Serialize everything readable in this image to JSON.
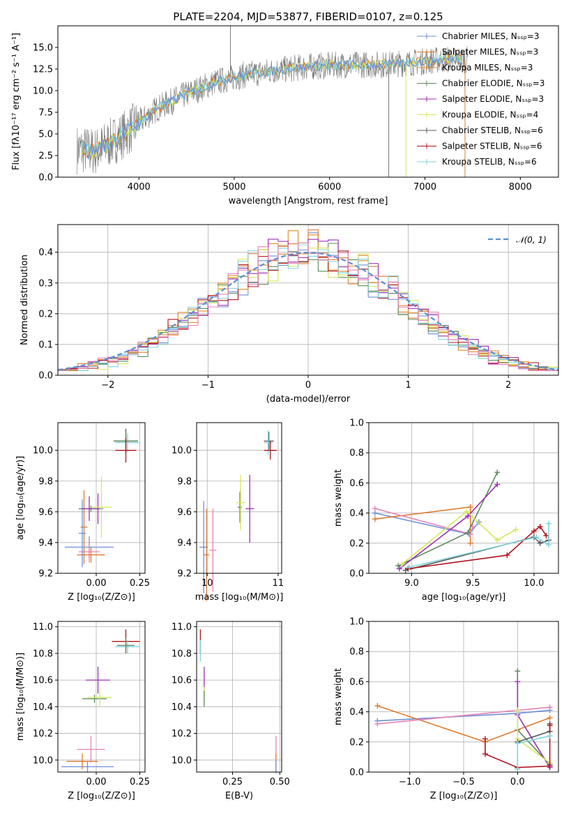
{
  "figure": {
    "title": "PLATE=2204, MJD=53877, FIBERID=0107, z=0.125"
  },
  "palette": {
    "chabrier_miles": "#6f8fd6",
    "salpeter_miles": "#e07b2e",
    "kroupa_miles": "#de8a22",
    "chabrier_elodie": "#5c8a5c",
    "salpeter_elodie": "#9b30b5",
    "kroupa_elodie": "#d4e85a",
    "chabrier_stelib": "#555555",
    "salpeter_stelib": "#b0141e",
    "kroupa_stelib": "#7fd3dc",
    "pink": "#e880b8",
    "normal_curve": "#5b8fd4",
    "grid": "#b0b0b0"
  },
  "chart_data": [
    {
      "id": "spectrum",
      "type": "line",
      "xlabel": "wavelength [Angstrom, rest frame]",
      "ylabel": "Flux [fλ10⁻¹⁷ erg cm⁻² s⁻¹ A⁻¹]",
      "xlim": [
        3150,
        8400
      ],
      "ylim": [
        0,
        17.5
      ],
      "xticks": [
        "4000",
        "5000",
        "6000",
        "7000",
        "8000"
      ],
      "yticks": [
        "0.0",
        "2.5",
        "5.0",
        "7.5",
        "10.0",
        "12.5",
        "15.0"
      ],
      "continuum": {
        "x": [
          3350,
          3550,
          3700,
          3850,
          4000,
          4200,
          4500,
          4800,
          5100,
          5400,
          5800,
          6200,
          6600,
          7000,
          7200,
          7400
        ],
        "y": [
          3.2,
          3.0,
          4.0,
          5.0,
          6.3,
          8.0,
          9.6,
          11.0,
          11.8,
          12.3,
          12.8,
          13.0,
          13.0,
          13.4,
          13.6,
          13.6
        ]
      },
      "legend": [
        "Chabrier MILES, N_SSP=3",
        "Salpeter MILES, N_SSP=3",
        "Kroupa MILES, N_SSP=3",
        "Chabrier ELODIE, N_SSP=3",
        "Salpeter ELODIE, N_SSP=3",
        "Kroupa ELODIE, N_SSP=4",
        "Chabrier STELIB, N_SSP=6",
        "Salpeter STELIB, N_SSP=6",
        "Kroupa STELIB, N_SSP=6"
      ],
      "legend_placement": "top-right",
      "grid": false
    },
    {
      "id": "histogram",
      "type": "bar",
      "xlabel": "(data-model)/error",
      "ylabel": "Normed distribution",
      "xlim": [
        -2.5,
        2.5
      ],
      "ylim": [
        0,
        0.49
      ],
      "xticks": [
        "−2",
        "−1",
        "0",
        "1",
        "2"
      ],
      "yticks": [
        "0.0",
        "0.1",
        "0.2",
        "0.3",
        "0.4"
      ],
      "bin_width": 0.1,
      "curve_label": "𝒩(0, 1)",
      "legend_placement": "top-right",
      "grid": true
    },
    {
      "id": "age_vs_Z",
      "type": "scatter",
      "xlabel": "Z [log₁₀(Z/Z⊙)]",
      "ylabel": "age  [log₁₀(age/yr)]",
      "xlim": [
        -0.22,
        0.28
      ],
      "ylim": [
        9.2,
        10.18
      ],
      "xticks": [
        "0.00",
        "0.25"
      ],
      "yticks": [
        "9.2",
        "9.4",
        "9.6",
        "9.8",
        "10.0"
      ],
      "points": [
        {
          "c": "chabrier_miles",
          "x": -0.04,
          "xe": 0.14,
          "y": 9.37,
          "ye": 0.07
        },
        {
          "c": "salpeter_miles",
          "x": -0.03,
          "xe": 0.08,
          "y": 9.32,
          "ye": 0.05
        },
        {
          "c": "pink",
          "x": -0.04,
          "xe": 0.06,
          "y": 9.34,
          "ye": 0.07
        },
        {
          "c": "salpeter_miles",
          "x": -0.07,
          "xe": 0.02,
          "y": 9.5,
          "ye": 0.24
        },
        {
          "c": "chabrier_miles",
          "x": -0.08,
          "xe": 0.02,
          "y": 9.46,
          "ye": 0.22
        },
        {
          "c": "chabrier_elodie",
          "x": -0.03,
          "xe": 0.07,
          "y": 9.62,
          "ye": 0.02
        },
        {
          "c": "salpeter_elodie",
          "x": 0.01,
          "xe": 0.01,
          "y": 9.62,
          "ye": 0.1
        },
        {
          "c": "kroupa_elodie",
          "x": 0.03,
          "xe": 0.06,
          "y": 9.63,
          "ye": 0.2
        },
        {
          "c": "salpeter_elodie",
          "x": -0.04,
          "xe": 0.04,
          "y": 9.62,
          "ye": 0.08
        },
        {
          "c": "chabrier_stelib",
          "x": 0.17,
          "xe": 0.07,
          "y": 10.06,
          "ye": 0.08
        },
        {
          "c": "kroupa_stelib",
          "x": 0.18,
          "xe": 0.07,
          "y": 10.05,
          "ye": 0.06
        },
        {
          "c": "chabrier_elodie",
          "x": 0.17,
          "xe": 0.07,
          "y": 10.06,
          "ye": 0.06
        },
        {
          "c": "salpeter_stelib",
          "x": 0.17,
          "xe": 0.06,
          "y": 10.0,
          "ye": 0.08
        }
      ],
      "grid": true
    },
    {
      "id": "age_vs_mass",
      "type": "scatter",
      "xlabel": "mass [log₁₀(M/M⊙)]",
      "ylabel": "",
      "xlim": [
        9.85,
        11.05
      ],
      "ylim": [
        9.2,
        10.18
      ],
      "xticks": [
        "10",
        "11"
      ],
      "yticks": [
        "9.2",
        "9.4",
        "9.6",
        "9.8",
        "10.0"
      ],
      "points": [
        {
          "c": "chabrier_miles",
          "x": 9.95,
          "xe": 0.06,
          "y": 9.37,
          "ye": 0.3
        },
        {
          "c": "salpeter_miles",
          "x": 9.99,
          "xe": 0.04,
          "y": 9.32,
          "ye": 0.3
        },
        {
          "c": "pink",
          "x": 10.08,
          "xe": 0.05,
          "y": 9.35,
          "ye": 0.27
        },
        {
          "c": "chabrier_elodie",
          "x": 10.46,
          "xe": 0.03,
          "y": 9.63,
          "ye": 0.1
        },
        {
          "c": "kroupa_elodie",
          "x": 10.47,
          "xe": 0.06,
          "y": 9.66,
          "ye": 0.18
        },
        {
          "c": "salpeter_elodie",
          "x": 10.6,
          "xe": 0.06,
          "y": 9.62,
          "ye": 0.22
        },
        {
          "c": "chabrier_stelib",
          "x": 10.87,
          "xe": 0.07,
          "y": 10.06,
          "ye": 0.06
        },
        {
          "c": "kroupa_stelib",
          "x": 10.86,
          "xe": 0.06,
          "y": 10.05,
          "ye": 0.08
        },
        {
          "c": "salpeter_stelib",
          "x": 10.89,
          "xe": 0.09,
          "y": 10.0,
          "ye": 0.06
        }
      ],
      "grid": true
    },
    {
      "id": "mass_weight_vs_age",
      "type": "line",
      "xlabel": "age  [log₁₀(age/yr)]",
      "ylabel": "mass weight",
      "xlim": [
        8.65,
        10.2
      ],
      "ylim": [
        0,
        1.0
      ],
      "xticks": [
        "9.0",
        "9.5",
        "10.0"
      ],
      "yticks": [
        "0.0",
        "0.2",
        "0.4",
        "0.6",
        "0.8",
        "1.0"
      ],
      "series": [
        {
          "c": "chabrier_miles",
          "x": [
            8.7,
            9.47,
            9.55
          ],
          "y": [
            0.4,
            0.26,
            0.34
          ]
        },
        {
          "c": "salpeter_miles",
          "x": [
            8.7,
            9.48,
            9.48
          ],
          "y": [
            0.36,
            0.44,
            0.2
          ]
        },
        {
          "c": "pink",
          "x": [
            8.7,
            9.48,
            9.5
          ],
          "y": [
            0.43,
            0.26,
            0.31
          ]
        },
        {
          "c": "chabrier_elodie",
          "x": [
            8.89,
            9.46,
            9.7
          ],
          "y": [
            0.05,
            0.27,
            0.67
          ]
        },
        {
          "c": "salpeter_elodie",
          "x": [
            8.9,
            9.46,
            9.7
          ],
          "y": [
            0.03,
            0.38,
            0.59
          ]
        },
        {
          "c": "kroupa_elodie",
          "x": [
            8.92,
            9.45,
            9.7,
            9.85
          ],
          "y": [
            0.06,
            0.41,
            0.22,
            0.29
          ]
        },
        {
          "c": "chabrier_stelib",
          "x": [
            8.95,
            10.0,
            10.05,
            10.12
          ],
          "y": [
            0.02,
            0.24,
            0.2,
            0.22
          ]
        },
        {
          "c": "salpeter_stelib",
          "x": [
            8.97,
            9.78,
            10.0,
            10.05,
            10.1
          ],
          "y": [
            0.03,
            0.12,
            0.28,
            0.31,
            0.25
          ]
        },
        {
          "c": "kroupa_stelib",
          "x": [
            8.98,
            10.02,
            10.12,
            10.12
          ],
          "y": [
            0.04,
            0.24,
            0.19,
            0.33
          ]
        }
      ],
      "grid": true
    },
    {
      "id": "mass_vs_Z",
      "type": "scatter",
      "xlabel": "Z [log₁₀(Z/Z⊙)]",
      "ylabel": "mass [log₁₀(M/M⊙)]",
      "xlim": [
        -0.22,
        0.28
      ],
      "ylim": [
        9.91,
        11.04
      ],
      "xticks": [
        "0.00",
        "0.25"
      ],
      "yticks": [
        "10.0",
        "10.2",
        "10.4",
        "10.6",
        "10.8",
        "11.0"
      ],
      "points": [
        {
          "c": "chabrier_miles",
          "x": -0.05,
          "xe": 0.15,
          "y": 9.95,
          "ye": 0.04
        },
        {
          "c": "salpeter_miles",
          "x": -0.08,
          "xe": 0.09,
          "y": 9.99,
          "ye": 0.06
        },
        {
          "c": "pink",
          "x": -0.03,
          "xe": 0.08,
          "y": 10.08,
          "ye": 0.1
        },
        {
          "c": "chabrier_elodie",
          "x": -0.01,
          "xe": 0.07,
          "y": 10.46,
          "ye": 0.03
        },
        {
          "c": "kroupa_elodie",
          "x": 0.02,
          "xe": 0.07,
          "y": 10.47,
          "ye": 0.07
        },
        {
          "c": "salpeter_elodie",
          "x": 0.01,
          "xe": 0.07,
          "y": 10.6,
          "ye": 0.1
        },
        {
          "c": "salpeter_stelib",
          "x": 0.17,
          "xe": 0.08,
          "y": 10.89,
          "ye": 0.09
        },
        {
          "c": "kroupa_stelib",
          "x": 0.18,
          "xe": 0.07,
          "y": 10.85,
          "ye": 0.05
        },
        {
          "c": "chabrier_elodie",
          "x": 0.17,
          "xe": 0.05,
          "y": 10.86,
          "ye": 0.06
        }
      ],
      "grid": true
    },
    {
      "id": "mass_vs_ebv",
      "type": "scatter",
      "xlabel": "E(B-V)",
      "ylabel": "",
      "xlim": [
        0.06,
        0.51
      ],
      "ylim": [
        9.91,
        11.04
      ],
      "xticks": [
        "0.25",
        "0.50"
      ],
      "yticks": [
        "10.0",
        "10.2",
        "10.4",
        "10.6",
        "10.8",
        "11.0"
      ],
      "points": [
        {
          "c": "salpeter_stelib",
          "x": 0.08,
          "xe": 0.0,
          "y": 10.89,
          "ye": 0.09
        },
        {
          "c": "kroupa_stelib",
          "x": 0.08,
          "xe": 0.0,
          "y": 10.82,
          "ye": 0.08
        },
        {
          "c": "salpeter_elodie",
          "x": 0.1,
          "xe": 0.0,
          "y": 10.6,
          "ye": 0.1
        },
        {
          "c": "kroupa_elodie",
          "x": 0.1,
          "xe": 0.0,
          "y": 10.48,
          "ye": 0.07
        },
        {
          "c": "chabrier_elodie",
          "x": 0.1,
          "xe": 0.0,
          "y": 10.46,
          "ye": 0.06
        },
        {
          "c": "pink",
          "x": 0.48,
          "xe": 0.0,
          "y": 10.06,
          "ye": 0.12
        },
        {
          "c": "salpeter_miles",
          "x": 0.48,
          "xe": 0.0,
          "y": 9.98,
          "ye": 0.07
        },
        {
          "c": "chabrier_miles",
          "x": 0.48,
          "xe": 0.0,
          "y": 9.95,
          "ye": 0.05
        }
      ],
      "grid": true
    },
    {
      "id": "mass_weight_vs_Z",
      "type": "line",
      "xlabel": "Z [log₁₀(Z/Z⊙)]",
      "ylabel": "mass weight",
      "xlim": [
        -1.38,
        0.38
      ],
      "ylim": [
        0,
        1.0
      ],
      "xticks": [
        "−1.0",
        "−0.5",
        "0.0"
      ],
      "yticks": [
        "0.0",
        "0.2",
        "0.4",
        "0.6",
        "0.8",
        "1.0"
      ],
      "series": [
        {
          "c": "chabrier_miles",
          "x": [
            -1.3,
            0.0,
            0.3
          ],
          "y": [
            0.34,
            0.39,
            0.41
          ]
        },
        {
          "c": "salpeter_miles",
          "x": [
            -1.3,
            -0.3,
            0.3
          ],
          "y": [
            0.44,
            0.2,
            0.36
          ]
        },
        {
          "c": "pink",
          "x": [
            -1.3,
            0.0,
            0.3
          ],
          "y": [
            0.32,
            0.41,
            0.43
          ]
        },
        {
          "c": "chabrier_elodie",
          "x": [
            0.0,
            0.0,
            0.3
          ],
          "y": [
            0.67,
            0.28,
            0.05
          ]
        },
        {
          "c": "salpeter_elodie",
          "x": [
            0.0,
            0.0,
            0.3
          ],
          "y": [
            0.6,
            0.38,
            0.03
          ]
        },
        {
          "c": "kroupa_elodie",
          "x": [
            0.0,
            0.0,
            0.3
          ],
          "y": [
            0.41,
            0.22,
            0.06
          ]
        },
        {
          "c": "chabrier_stelib",
          "x": [
            0.0,
            0.3,
            0.3
          ],
          "y": [
            0.2,
            0.27,
            0.32
          ]
        },
        {
          "c": "salpeter_stelib",
          "x": [
            -0.3,
            -0.3,
            0.0,
            0.3,
            0.3
          ],
          "y": [
            0.22,
            0.12,
            0.03,
            0.04,
            0.31
          ]
        },
        {
          "c": "kroupa_stelib",
          "x": [
            0.0,
            0.0,
            0.3
          ],
          "y": [
            0.02,
            0.19,
            0.24
          ]
        }
      ],
      "grid": true
    }
  ]
}
